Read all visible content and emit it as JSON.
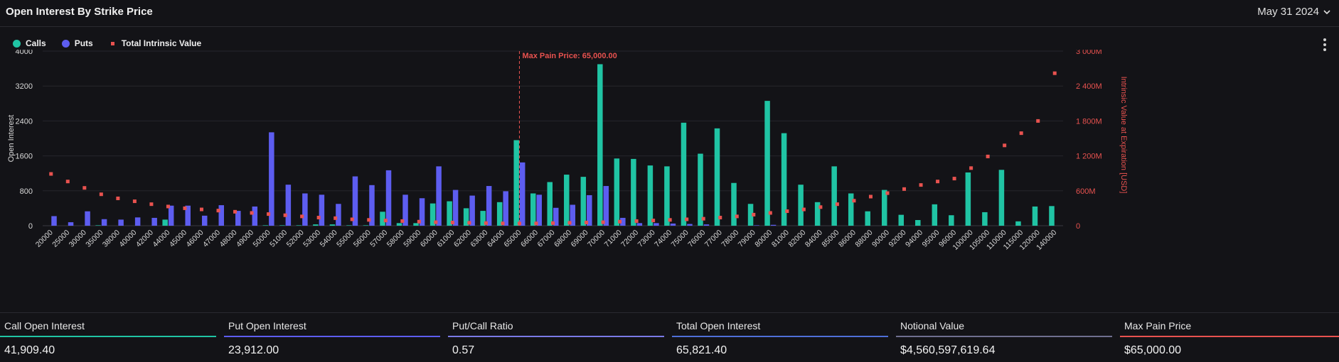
{
  "header": {
    "title": "Open Interest By Strike Price",
    "date": "May 31 2024"
  },
  "legend": [
    {
      "label": "Calls",
      "color": "#20c4a4"
    },
    {
      "label": "Puts",
      "color": "#5d5df0"
    },
    {
      "label": "Total Intrinsic Value",
      "color": "#e8524f"
    }
  ],
  "chart_data": {
    "type": "bar",
    "categories": [
      "20000",
      "25000",
      "30000",
      "35000",
      "38000",
      "40000",
      "42000",
      "44000",
      "45000",
      "46000",
      "47000",
      "48000",
      "49000",
      "50000",
      "51000",
      "52000",
      "53000",
      "54000",
      "55000",
      "56000",
      "57000",
      "58000",
      "59000",
      "60000",
      "61000",
      "62000",
      "63000",
      "64000",
      "65000",
      "66000",
      "67000",
      "68000",
      "69000",
      "70000",
      "71000",
      "72000",
      "73000",
      "74000",
      "75000",
      "76000",
      "77000",
      "78000",
      "79000",
      "80000",
      "81000",
      "82000",
      "84000",
      "85000",
      "86000",
      "88000",
      "90000",
      "92000",
      "94000",
      "95000",
      "96000",
      "100000",
      "105000",
      "110000",
      "115000",
      "120000",
      "140000"
    ],
    "series": [
      {
        "name": "Calls",
        "type": "bar",
        "axis": "left",
        "color": "#20c4a4",
        "values": [
          0,
          0,
          0,
          10,
          0,
          0,
          0,
          140,
          0,
          0,
          0,
          0,
          0,
          10,
          10,
          10,
          30,
          30,
          10,
          10,
          320,
          60,
          60,
          510,
          560,
          400,
          340,
          540,
          1960,
          740,
          1000,
          1170,
          1120,
          3700,
          1540,
          1530,
          1380,
          1360,
          2360,
          1650,
          2230,
          980,
          500,
          2860,
          2120,
          940,
          540,
          1360,
          740,
          330,
          820,
          250,
          130,
          490,
          240,
          1220,
          310,
          1280,
          100,
          440,
          450
        ]
      },
      {
        "name": "Puts",
        "type": "bar",
        "axis": "left",
        "color": "#5d5df0",
        "values": [
          220,
          80,
          330,
          150,
          140,
          190,
          180,
          460,
          460,
          230,
          470,
          340,
          440,
          2140,
          940,
          740,
          710,
          500,
          1130,
          930,
          1270,
          710,
          630,
          1360,
          820,
          690,
          910,
          790,
          1450,
          710,
          410,
          480,
          700,
          910,
          180,
          60,
          60,
          50,
          40,
          30,
          0,
          0,
          10,
          20,
          0,
          0,
          0,
          0,
          0,
          0,
          0,
          0,
          0,
          0,
          0,
          0,
          0,
          0,
          0,
          0,
          0
        ]
      },
      {
        "name": "Total Intrinsic Value",
        "type": "scatter",
        "axis": "right",
        "color": "#e8524f",
        "values": [
          890,
          760,
          650,
          540,
          470,
          420,
          370,
          330,
          300,
          280,
          260,
          240,
          220,
          200,
          180,
          160,
          140,
          130,
          110,
          100,
          90,
          80,
          70,
          60,
          55,
          50,
          45,
          40,
          38,
          40,
          45,
          50,
          55,
          60,
          70,
          80,
          90,
          100,
          110,
          120,
          140,
          160,
          190,
          220,
          250,
          280,
          320,
          370,
          430,
          500,
          560,
          630,
          700,
          760,
          810,
          990,
          1190,
          1380,
          1590,
          1800,
          2620
        ]
      }
    ],
    "ylabel": "Open Interest",
    "ylim": [
      0,
      4000
    ],
    "yticks": [
      "0",
      "800",
      "1600",
      "2400",
      "3200",
      "4000"
    ],
    "y2label": "Intrinsic Value at Expiration [USD]",
    "y2lim": [
      0,
      3000
    ],
    "y2ticks": [
      "0",
      "600M",
      "1 200M",
      "1 800M",
      "2 400M",
      "3 000M"
    ],
    "annotation": {
      "text": "Max Pain Price: 65,000.00",
      "category": "65000"
    },
    "grid": true,
    "legend_position": "top-left"
  },
  "stats": [
    {
      "label": "Call Open Interest",
      "value": "41,909.40",
      "color": "#20c4a4"
    },
    {
      "label": "Put Open Interest",
      "value": "23,912.00",
      "color": "#5d5df0"
    },
    {
      "label": "Put/Call Ratio",
      "value": "0.57",
      "color": "#7a7ae6"
    },
    {
      "label": "Total Open Interest",
      "value": "65,821.40",
      "color": "#4f6fd8"
    },
    {
      "label": "Notional Value",
      "value": "$4,560,597,619.64",
      "color": "#6f6f8f"
    },
    {
      "label": "Max Pain Price",
      "value": "$65,000.00",
      "color": "#e8524f"
    }
  ]
}
